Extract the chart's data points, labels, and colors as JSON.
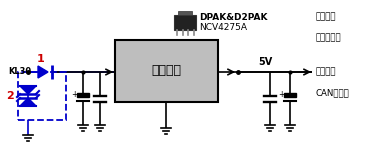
{
  "bg_color": "#ffffff",
  "line_color": "#000000",
  "blue_color": "#0000cc",
  "red_color": "#cc0000",
  "box_fill": "#bebebe",
  "box_edge": "#000000",
  "dashed_box_color": "#0000cc",
  "title_bold": "DPAK&D2PAK",
  "title_sub": "NCV4275A",
  "box_label": "线性电源",
  "kl30_label": "KL30",
  "label1": "1",
  "label2": "2",
  "label_5v": "5V",
  "right_labels": [
    "微处理器",
    "高频收发器",
    "上拉电阻",
    "CAN收发器"
  ],
  "figsize": [
    3.76,
    1.5
  ],
  "dpi": 100
}
